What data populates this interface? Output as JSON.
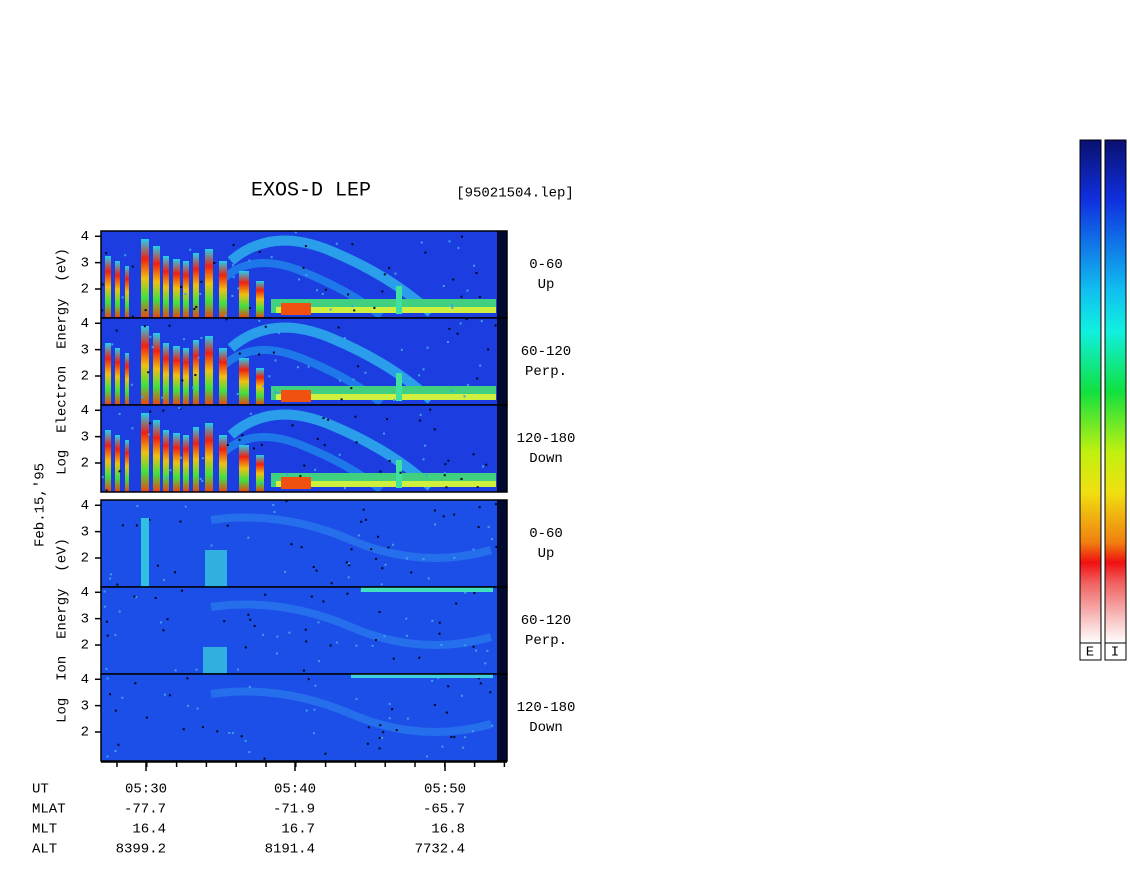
{
  "chart_data": {
    "type": "spectrogram",
    "title": "EXOS-D LEP",
    "subtitle": "[95021504.lep]",
    "date": "Feb.15,'95",
    "ylim": [
      0.9,
      4.2
    ],
    "yticks": [
      2,
      3,
      4
    ],
    "groups": [
      {
        "ylabel": "Log  Electron  Energy  (eV)",
        "panels": [
          {
            "label": [
              "0-60",
              "Up"
            ]
          },
          {
            "label": [
              "60-120",
              "Perp."
            ]
          },
          {
            "label": [
              "120-180",
              "Down"
            ]
          }
        ]
      },
      {
        "ylabel": "Log  Ion  Energy  (eV)",
        "panels": [
          {
            "label": [
              "0-60",
              "Up"
            ]
          },
          {
            "label": [
              "60-120",
              "Perp."
            ]
          },
          {
            "label": [
              "120-180",
              "Down"
            ]
          }
        ]
      }
    ],
    "x": [
      "05:30",
      "05:40",
      "05:50"
    ],
    "ephemeris": {
      "names": [
        "UT",
        "MLAT",
        "MLT",
        "ALT"
      ],
      "columns": [
        [
          "-77.7",
          "16.4",
          "8399.2"
        ],
        [
          "-71.9",
          "16.7",
          "8191.4"
        ],
        [
          "-65.7",
          "16.8",
          "7732.4"
        ]
      ]
    },
    "colorbars": [
      "E",
      "I"
    ]
  }
}
